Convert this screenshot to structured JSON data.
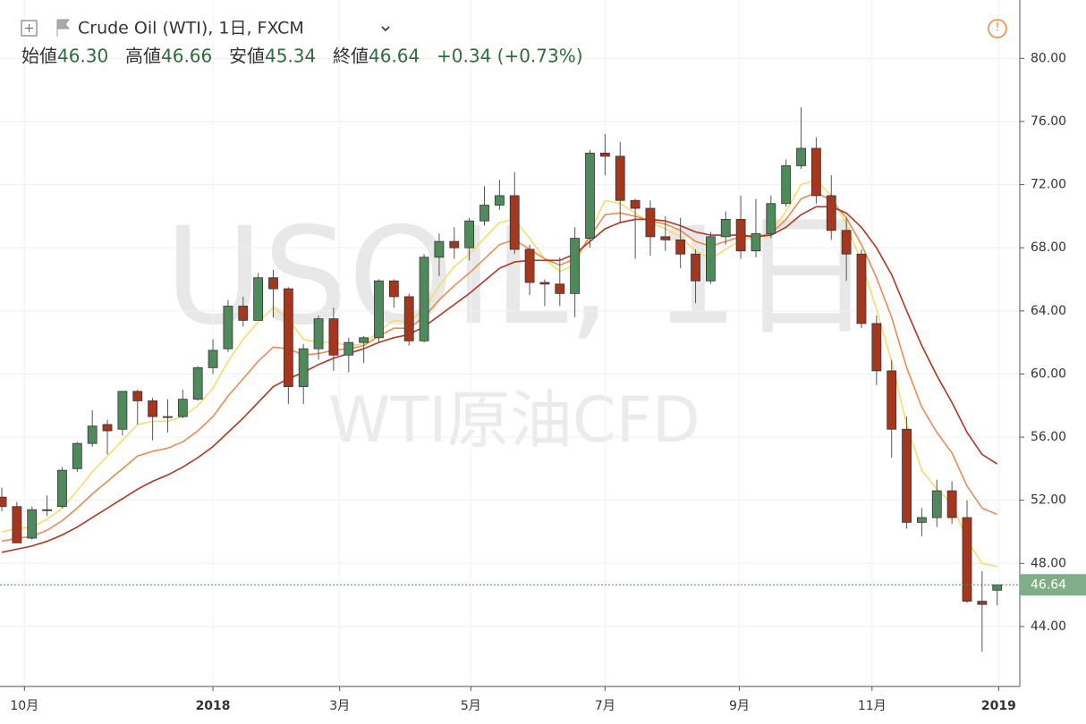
{
  "chart_data": {
    "type": "candlestick",
    "title": "Crude Oil (WTI), 1日, FXCM",
    "watermark": "USOIL, 1日",
    "watermark_sub": "WTI原油CFD",
    "legend_items": [
      {
        "label": "始値",
        "value": "46.30"
      },
      {
        "label": "高値",
        "value": "46.66"
      },
      {
        "label": "安値",
        "value": "45.34"
      },
      {
        "label": "終値",
        "value": "46.64"
      }
    ],
    "change": "+0.34 (+0.73%)",
    "last_price": {
      "value": 46.64,
      "label": "46.64"
    },
    "up_color": "#4f8a5c",
    "down_color": "#a5371f",
    "open": [
      52.2,
      51.6,
      49.6,
      51.4,
      51.6,
      54.0,
      55.6,
      56.8,
      56.5,
      58.9,
      58.3,
      57.3,
      57.3,
      58.4,
      60.4,
      61.6,
      64.3,
      63.4,
      66.1,
      65.4,
      59.2,
      61.6,
      63.5,
      61.2,
      62.0,
      62.3,
      65.9,
      64.9,
      62.1,
      67.4,
      68.4,
      68.0,
      69.7,
      70.7,
      71.3,
      67.9,
      65.8,
      65.7,
      65.1,
      68.6,
      74.0,
      73.8,
      71.0,
      70.5,
      68.7,
      68.5,
      67.6,
      65.9,
      68.7,
      69.8,
      67.8,
      68.9,
      70.8,
      73.2,
      74.3,
      71.3,
      69.1,
      67.6,
      63.2,
      60.2,
      56.5,
      50.6,
      50.9,
      52.6,
      50.9,
      45.6,
      46.3
    ],
    "high": [
      52.8,
      51.9,
      51.6,
      52.3,
      54.1,
      55.7,
      57.7,
      57.1,
      58.9,
      59.0,
      58.5,
      58.4,
      59.0,
      60.5,
      62.2,
      64.7,
      64.9,
      66.4,
      66.6,
      65.5,
      61.9,
      63.7,
      64.2,
      62.3,
      62.4,
      66.0,
      66.0,
      65.1,
      67.6,
      68.9,
      69.3,
      69.9,
      71.9,
      72.3,
      72.8,
      68.2,
      66.0,
      67.4,
      69.3,
      74.2,
      75.2,
      74.7,
      71.1,
      71.0,
      70.0,
      69.9,
      67.9,
      69.0,
      70.3,
      71.3,
      71.1,
      71.3,
      73.6,
      76.9,
      75.0,
      72.6,
      69.9,
      67.9,
      63.7,
      60.9,
      57.3,
      51.5,
      53.3,
      53.2,
      52.0,
      47.5,
      46.66
    ],
    "low": [
      51.3,
      49.3,
      49.5,
      51.0,
      51.5,
      53.8,
      55.4,
      54.9,
      56.1,
      56.8,
      55.8,
      56.3,
      57.2,
      58.3,
      60.0,
      61.4,
      63.0,
      63.4,
      63.6,
      58.1,
      58.1,
      60.9,
      60.2,
      60.1,
      60.7,
      62.0,
      64.2,
      61.8,
      62.0,
      66.2,
      67.3,
      67.2,
      69.4,
      70.4,
      67.6,
      65.0,
      64.3,
      64.3,
      63.6,
      68.0,
      72.6,
      69.6,
      67.3,
      67.5,
      67.8,
      66.7,
      64.5,
      65.7,
      68.2,
      67.3,
      67.4,
      68.6,
      70.6,
      73.0,
      70.8,
      68.5,
      65.9,
      62.9,
      59.3,
      54.7,
      50.2,
      49.7,
      50.3,
      50.5,
      45.5,
      42.4,
      45.34
    ],
    "close": [
      51.6,
      49.3,
      51.4,
      51.4,
      53.9,
      55.6,
      56.7,
      56.4,
      58.9,
      58.3,
      57.3,
      57.3,
      58.4,
      60.4,
      61.5,
      64.3,
      63.4,
      66.1,
      65.4,
      59.2,
      61.6,
      63.5,
      61.2,
      62.0,
      62.3,
      65.9,
      64.9,
      62.1,
      67.4,
      68.4,
      68.0,
      69.7,
      70.7,
      71.3,
      67.9,
      65.8,
      65.7,
      65.1,
      68.6,
      74.0,
      73.8,
      71.0,
      70.5,
      68.7,
      68.5,
      67.6,
      65.9,
      68.7,
      69.8,
      67.8,
      68.9,
      70.8,
      73.2,
      74.3,
      71.3,
      69.1,
      67.6,
      63.2,
      60.2,
      56.5,
      50.6,
      50.9,
      52.6,
      50.9,
      45.6,
      45.4,
      46.64
    ],
    "series": [
      {
        "color": "#f6dc6e",
        "values": [
          50.0,
          50.2,
          50.3,
          50.8,
          51.5,
          52.6,
          53.8,
          54.8,
          55.8,
          56.8,
          57.0,
          57.0,
          57.3,
          58.0,
          59.1,
          60.8,
          62.2,
          63.3,
          64.2,
          63.5,
          62.2,
          62.0,
          62.0,
          61.8,
          61.9,
          62.7,
          63.4,
          63.3,
          64.1,
          65.6,
          66.8,
          67.6,
          68.6,
          69.6,
          69.8,
          68.6,
          67.3,
          66.5,
          66.9,
          69.0,
          71.0,
          70.8,
          70.2,
          69.6,
          69.2,
          68.7,
          67.8,
          67.3,
          67.9,
          68.5,
          68.6,
          69.0,
          70.3,
          72.0,
          72.3,
          71.3,
          69.5,
          67.1,
          64.1,
          60.8,
          56.8,
          53.9,
          52.7,
          51.8,
          49.5,
          48.0,
          47.8
        ]
      },
      {
        "color": "#ec8a52",
        "values": [
          49.4,
          49.6,
          49.7,
          50.1,
          50.7,
          51.5,
          52.4,
          53.2,
          54.0,
          54.8,
          55.1,
          55.3,
          55.7,
          56.4,
          57.3,
          58.6,
          59.7,
          60.8,
          61.7,
          61.6,
          61.2,
          61.3,
          61.5,
          61.6,
          61.8,
          62.4,
          62.9,
          62.9,
          63.6,
          64.7,
          65.6,
          66.4,
          67.3,
          68.2,
          68.5,
          67.9,
          67.3,
          66.9,
          67.3,
          68.7,
          70.1,
          70.2,
          70.0,
          69.7,
          69.5,
          69.1,
          68.4,
          68.1,
          68.4,
          68.7,
          68.7,
          68.9,
          69.8,
          71.1,
          71.5,
          71.0,
          69.9,
          68.2,
          66.1,
          63.6,
          60.4,
          57.9,
          56.3,
          55.0,
          52.9,
          51.5,
          51.1
        ]
      },
      {
        "color": "#b5351f",
        "values": [
          48.7,
          48.9,
          49.1,
          49.4,
          49.8,
          50.3,
          50.9,
          51.5,
          52.1,
          52.7,
          53.2,
          53.6,
          54.1,
          54.7,
          55.4,
          56.3,
          57.2,
          58.2,
          59.2,
          59.7,
          60.1,
          60.6,
          61.0,
          61.3,
          61.6,
          62.0,
          62.3,
          62.5,
          63.0,
          63.7,
          64.4,
          65.1,
          65.9,
          66.7,
          67.1,
          67.2,
          67.2,
          67.2,
          67.6,
          68.4,
          69.2,
          69.6,
          69.8,
          69.8,
          69.7,
          69.4,
          69.0,
          68.8,
          68.8,
          68.8,
          68.7,
          68.8,
          69.3,
          70.1,
          70.6,
          70.6,
          70.2,
          69.3,
          68.0,
          66.3,
          64.0,
          61.8,
          59.9,
          58.2,
          56.3,
          54.9,
          54.3
        ]
      }
    ],
    "ylim": [
      40.2,
      83.7
    ],
    "yticks": [
      {
        "value": 44,
        "label": "44.00"
      },
      {
        "value": 48,
        "label": "48.00"
      },
      {
        "value": 52,
        "label": "52.00"
      },
      {
        "value": 56,
        "label": "56.00"
      },
      {
        "value": 60,
        "label": "60.00"
      },
      {
        "value": 64,
        "label": "64.00"
      },
      {
        "value": 68,
        "label": "68.00"
      },
      {
        "value": 72,
        "label": "72.00"
      },
      {
        "value": 76,
        "label": "76.00"
      },
      {
        "value": 80,
        "label": "80.00"
      }
    ],
    "xlim": [
      -0.12,
      67.5
    ],
    "xticks": [
      {
        "value": 1.5,
        "label": "10月"
      },
      {
        "value": 14.0,
        "label": "2018"
      },
      {
        "value": 22.4,
        "label": "3月"
      },
      {
        "value": 31.1,
        "label": "5月"
      },
      {
        "value": 40.0,
        "label": "7月"
      },
      {
        "value": 48.9,
        "label": "9月"
      },
      {
        "value": 57.7,
        "label": "11月"
      },
      {
        "value": 66.1,
        "label": "2019"
      }
    ],
    "grid": true
  }
}
